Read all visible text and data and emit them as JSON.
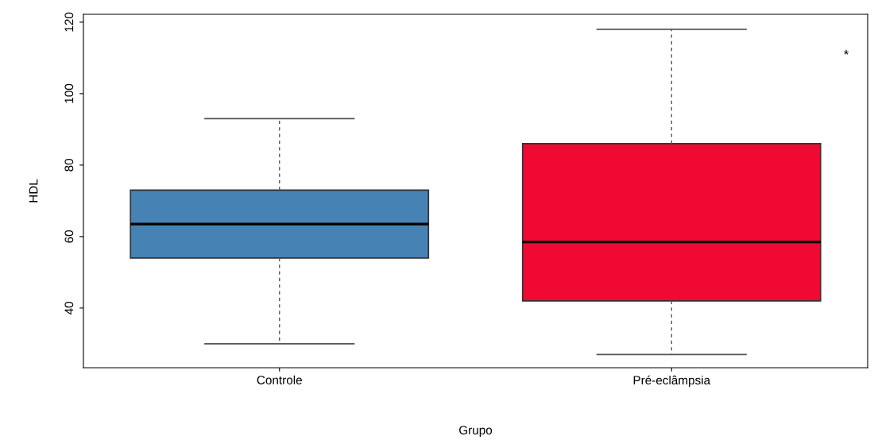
{
  "chart_data": {
    "type": "box",
    "xlabel": "Grupo",
    "ylabel": "HDL",
    "categories": [
      "Controle",
      "Pré-eclâmpsia"
    ],
    "boxes": [
      {
        "low": 30,
        "q1": 54,
        "median": 63.5,
        "q3": 73,
        "high": 93
      },
      {
        "low": 27,
        "q1": 42,
        "median": 58.5,
        "q3": 86,
        "high": 118
      }
    ],
    "colors": [
      "#4682b4",
      "#f00a33"
    ],
    "ylim": [
      23.3,
      122.2
    ],
    "yticks": [
      40,
      60,
      80,
      100,
      120
    ],
    "grid": false,
    "legend": false,
    "annotations": [
      "*"
    ]
  }
}
